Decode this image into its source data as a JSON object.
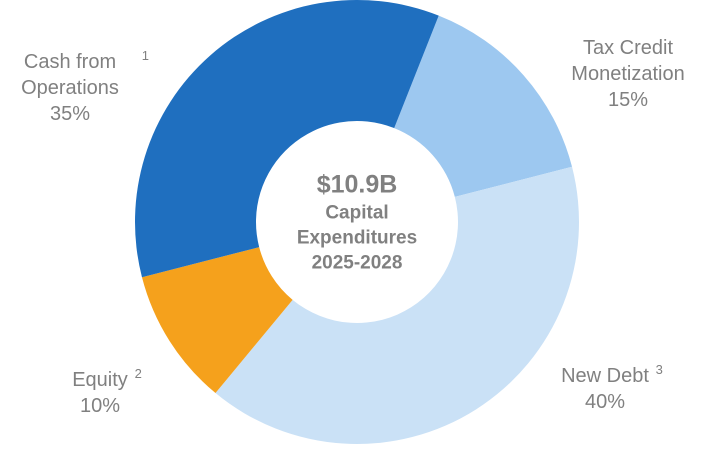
{
  "chart_data": {
    "type": "donut",
    "center_value": "$10.9B",
    "center_label": "Capital Expenditures 2025-2028",
    "categories": [
      "Tax Credit Monetization",
      "New Debt",
      "Equity",
      "Cash from Operations"
    ],
    "footnotes": [
      null,
      "3",
      "2",
      "1"
    ],
    "values": [
      15,
      40,
      10,
      35
    ],
    "value_labels": [
      "15%",
      "40%",
      "10%",
      "35%"
    ],
    "colors": [
      "#9dc8f0",
      "#cae1f6",
      "#f5a11c",
      "#1f6fbf"
    ]
  }
}
